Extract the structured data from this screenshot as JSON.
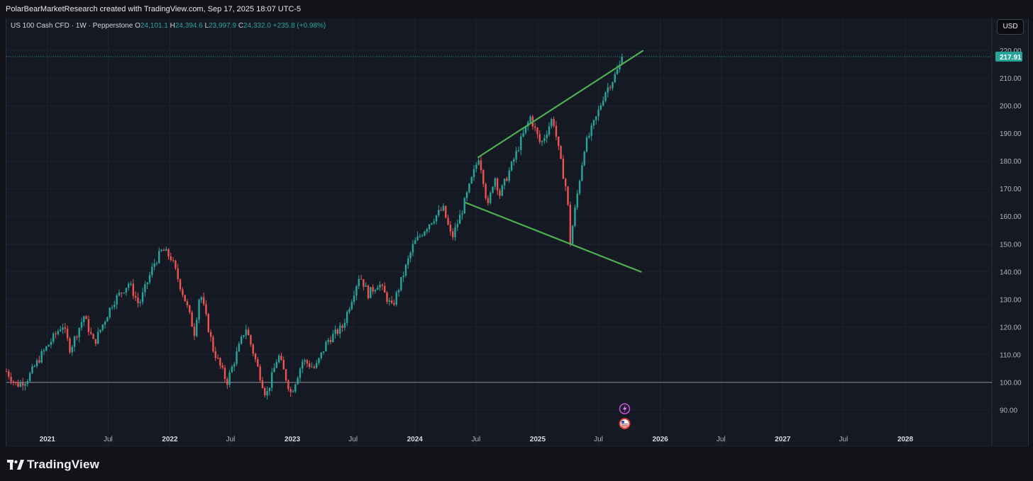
{
  "header": {
    "credit": "PolarBearMarketResearch created with TradingView.com, Sep 17, 2025 18:07 UTC-5"
  },
  "legend": {
    "symbol": "US 100 Cash CFD · 1W · Pepperstone",
    "open_label": "O",
    "open": "24,101.1",
    "high_label": "H",
    "high": "24,394.6",
    "low_label": "L",
    "low": "23,997.9",
    "close_label": "C",
    "close": "24,332.0",
    "change": "+235.8 (+0.98%)"
  },
  "currency_button": "USD",
  "price_tag": "217.91",
  "brand": "TradingView",
  "colors": {
    "up": "#26a69a",
    "down": "#ef5350",
    "trendline": "#4caf50",
    "background": "#151924",
    "price_tag": "#26a69a"
  },
  "chart_data": {
    "type": "candlestick",
    "timeframe": "1W",
    "x_range": [
      "2020-09-01",
      "2028-09-15"
    ],
    "ylim": [
      82,
      223
    ],
    "y_ticks": [
      220,
      210,
      200,
      190,
      180,
      170,
      160,
      150,
      140,
      130,
      120,
      110,
      100,
      90
    ],
    "y_tick_labels": [
      "220.00",
      "210.00",
      "200.00",
      "190.00",
      "180.00",
      "170.00",
      "160.00",
      "150.00",
      "140.00",
      "130.00",
      "120.00",
      "110.00",
      "100.00",
      "90.00"
    ],
    "x_ticks": [
      {
        "date": "2021-01-01",
        "label": "2021",
        "bold": true
      },
      {
        "date": "2021-07-01",
        "label": "Jul",
        "bold": false
      },
      {
        "date": "2022-01-01",
        "label": "2022",
        "bold": true
      },
      {
        "date": "2022-07-01",
        "label": "Jul",
        "bold": false
      },
      {
        "date": "2023-01-01",
        "label": "2023",
        "bold": true
      },
      {
        "date": "2023-07-01",
        "label": "Jul",
        "bold": false
      },
      {
        "date": "2024-01-01",
        "label": "2024",
        "bold": true
      },
      {
        "date": "2024-07-01",
        "label": "Jul",
        "bold": false
      },
      {
        "date": "2025-01-01",
        "label": "2025",
        "bold": true
      },
      {
        "date": "2025-07-01",
        "label": "Jul",
        "bold": false
      },
      {
        "date": "2026-01-01",
        "label": "2026",
        "bold": true
      },
      {
        "date": "2026-07-01",
        "label": "Jul",
        "bold": false
      },
      {
        "date": "2027-01-01",
        "label": "2027",
        "bold": true
      },
      {
        "date": "2027-07-01",
        "label": "Jul",
        "bold": false
      },
      {
        "date": "2028-01-01",
        "label": "2028",
        "bold": true
      }
    ],
    "price_path": [
      [
        "2020-09-01",
        104
      ],
      [
        "2020-10-01",
        99
      ],
      [
        "2020-11-01",
        101
      ],
      [
        "2020-12-15",
        110
      ],
      [
        "2021-02-15",
        121
      ],
      [
        "2021-03-10",
        112
      ],
      [
        "2021-04-20",
        124
      ],
      [
        "2021-05-20",
        114
      ],
      [
        "2021-07-15",
        129
      ],
      [
        "2021-09-01",
        136
      ],
      [
        "2021-10-01",
        128
      ],
      [
        "2021-11-15",
        143
      ],
      [
        "2021-12-10",
        148
      ],
      [
        "2022-01-05",
        145
      ],
      [
        "2022-02-20",
        128
      ],
      [
        "2022-03-15",
        118
      ],
      [
        "2022-04-01",
        133
      ],
      [
        "2022-05-10",
        112
      ],
      [
        "2022-06-20",
        100
      ],
      [
        "2022-08-15",
        120
      ],
      [
        "2022-10-15",
        95
      ],
      [
        "2022-11-20",
        110
      ],
      [
        "2022-12-28",
        96
      ],
      [
        "2023-02-01",
        108
      ],
      [
        "2023-03-10",
        105
      ],
      [
        "2023-04-15",
        115
      ],
      [
        "2023-05-30",
        120
      ],
      [
        "2023-07-20",
        139
      ],
      [
        "2023-08-15",
        132
      ],
      [
        "2023-09-15",
        136
      ],
      [
        "2023-10-25",
        127
      ],
      [
        "2023-12-28",
        150
      ],
      [
        "2024-02-15",
        158
      ],
      [
        "2024-03-25",
        163
      ],
      [
        "2024-04-20",
        152
      ],
      [
        "2024-05-20",
        162
      ],
      [
        "2024-07-10",
        182
      ],
      [
        "2024-07-25",
        172
      ],
      [
        "2024-08-05",
        163
      ],
      [
        "2024-08-25",
        175
      ],
      [
        "2024-09-10",
        168
      ],
      [
        "2024-10-20",
        180
      ],
      [
        "2024-11-10",
        187
      ],
      [
        "2024-12-10",
        196
      ],
      [
        "2025-01-10",
        186
      ],
      [
        "2025-02-15",
        196
      ],
      [
        "2025-03-10",
        180
      ],
      [
        "2025-03-30",
        168
      ],
      [
        "2025-04-07",
        150
      ],
      [
        "2025-04-25",
        165
      ],
      [
        "2025-05-20",
        185
      ],
      [
        "2025-06-25",
        196
      ],
      [
        "2025-07-20",
        205
      ],
      [
        "2025-08-15",
        210
      ],
      [
        "2025-09-15",
        217.9
      ]
    ],
    "trendlines": [
      {
        "from": [
          "2024-07-08",
          181.5
        ],
        "to": [
          "2025-11-10",
          220
        ]
      },
      {
        "from": [
          "2024-06-01",
          165
        ],
        "to": [
          "2025-11-05",
          140
        ]
      }
    ],
    "horizontal_levels": [
      {
        "value": 100,
        "style": "solid"
      },
      {
        "value": 217.91,
        "style": "dotted"
      }
    ],
    "event_markers": [
      {
        "date": "2025-09-17",
        "kind": "lightning-icon"
      },
      {
        "date": "2025-09-17",
        "kind": "us-flag-icon"
      }
    ]
  }
}
